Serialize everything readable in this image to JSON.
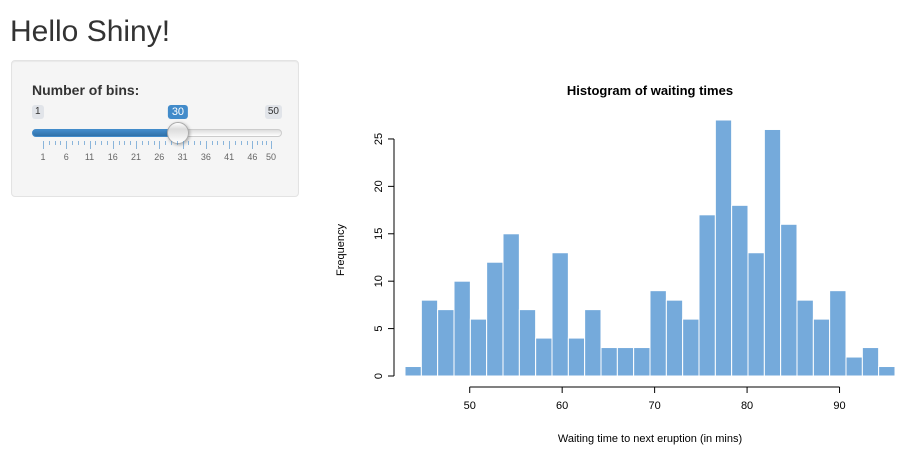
{
  "app": {
    "title": "Hello Shiny!"
  },
  "sidebar": {
    "slider": {
      "label": "Number of bins:",
      "min": 1,
      "max": 50,
      "value": 30,
      "min_label": "1",
      "max_label": "50",
      "value_label": "30",
      "grid_labels": [
        "1",
        "6",
        "11",
        "16",
        "21",
        "26",
        "31",
        "36",
        "41",
        "46",
        "50"
      ],
      "bar_color": "#428bca"
    }
  },
  "chart_data": {
    "type": "bar",
    "title": "Histogram of waiting times",
    "xlabel": "Waiting time to next eruption (in mins)",
    "ylabel": "Frequency",
    "bin_edges": [
      43.0,
      44.77,
      46.53,
      48.3,
      50.07,
      51.83,
      53.6,
      55.37,
      57.13,
      58.9,
      60.67,
      62.43,
      64.2,
      65.97,
      67.73,
      69.5,
      71.27,
      73.03,
      74.8,
      76.57,
      78.33,
      80.1,
      81.87,
      83.63,
      85.4,
      87.17,
      88.93,
      90.7,
      92.47,
      94.23,
      96.0
    ],
    "values": [
      1,
      8,
      7,
      10,
      6,
      12,
      15,
      7,
      4,
      13,
      4,
      7,
      3,
      3,
      3,
      9,
      8,
      6,
      17,
      27,
      18,
      13,
      26,
      16,
      8,
      6,
      9,
      2,
      3,
      1
    ],
    "xticks": [
      50,
      60,
      70,
      80,
      90
    ],
    "yticks": [
      0,
      5,
      10,
      15,
      20,
      25
    ],
    "ylim": [
      0,
      27
    ],
    "grid": false,
    "bar_fill": "#75aadb",
    "bar_border": "#ffffff"
  }
}
